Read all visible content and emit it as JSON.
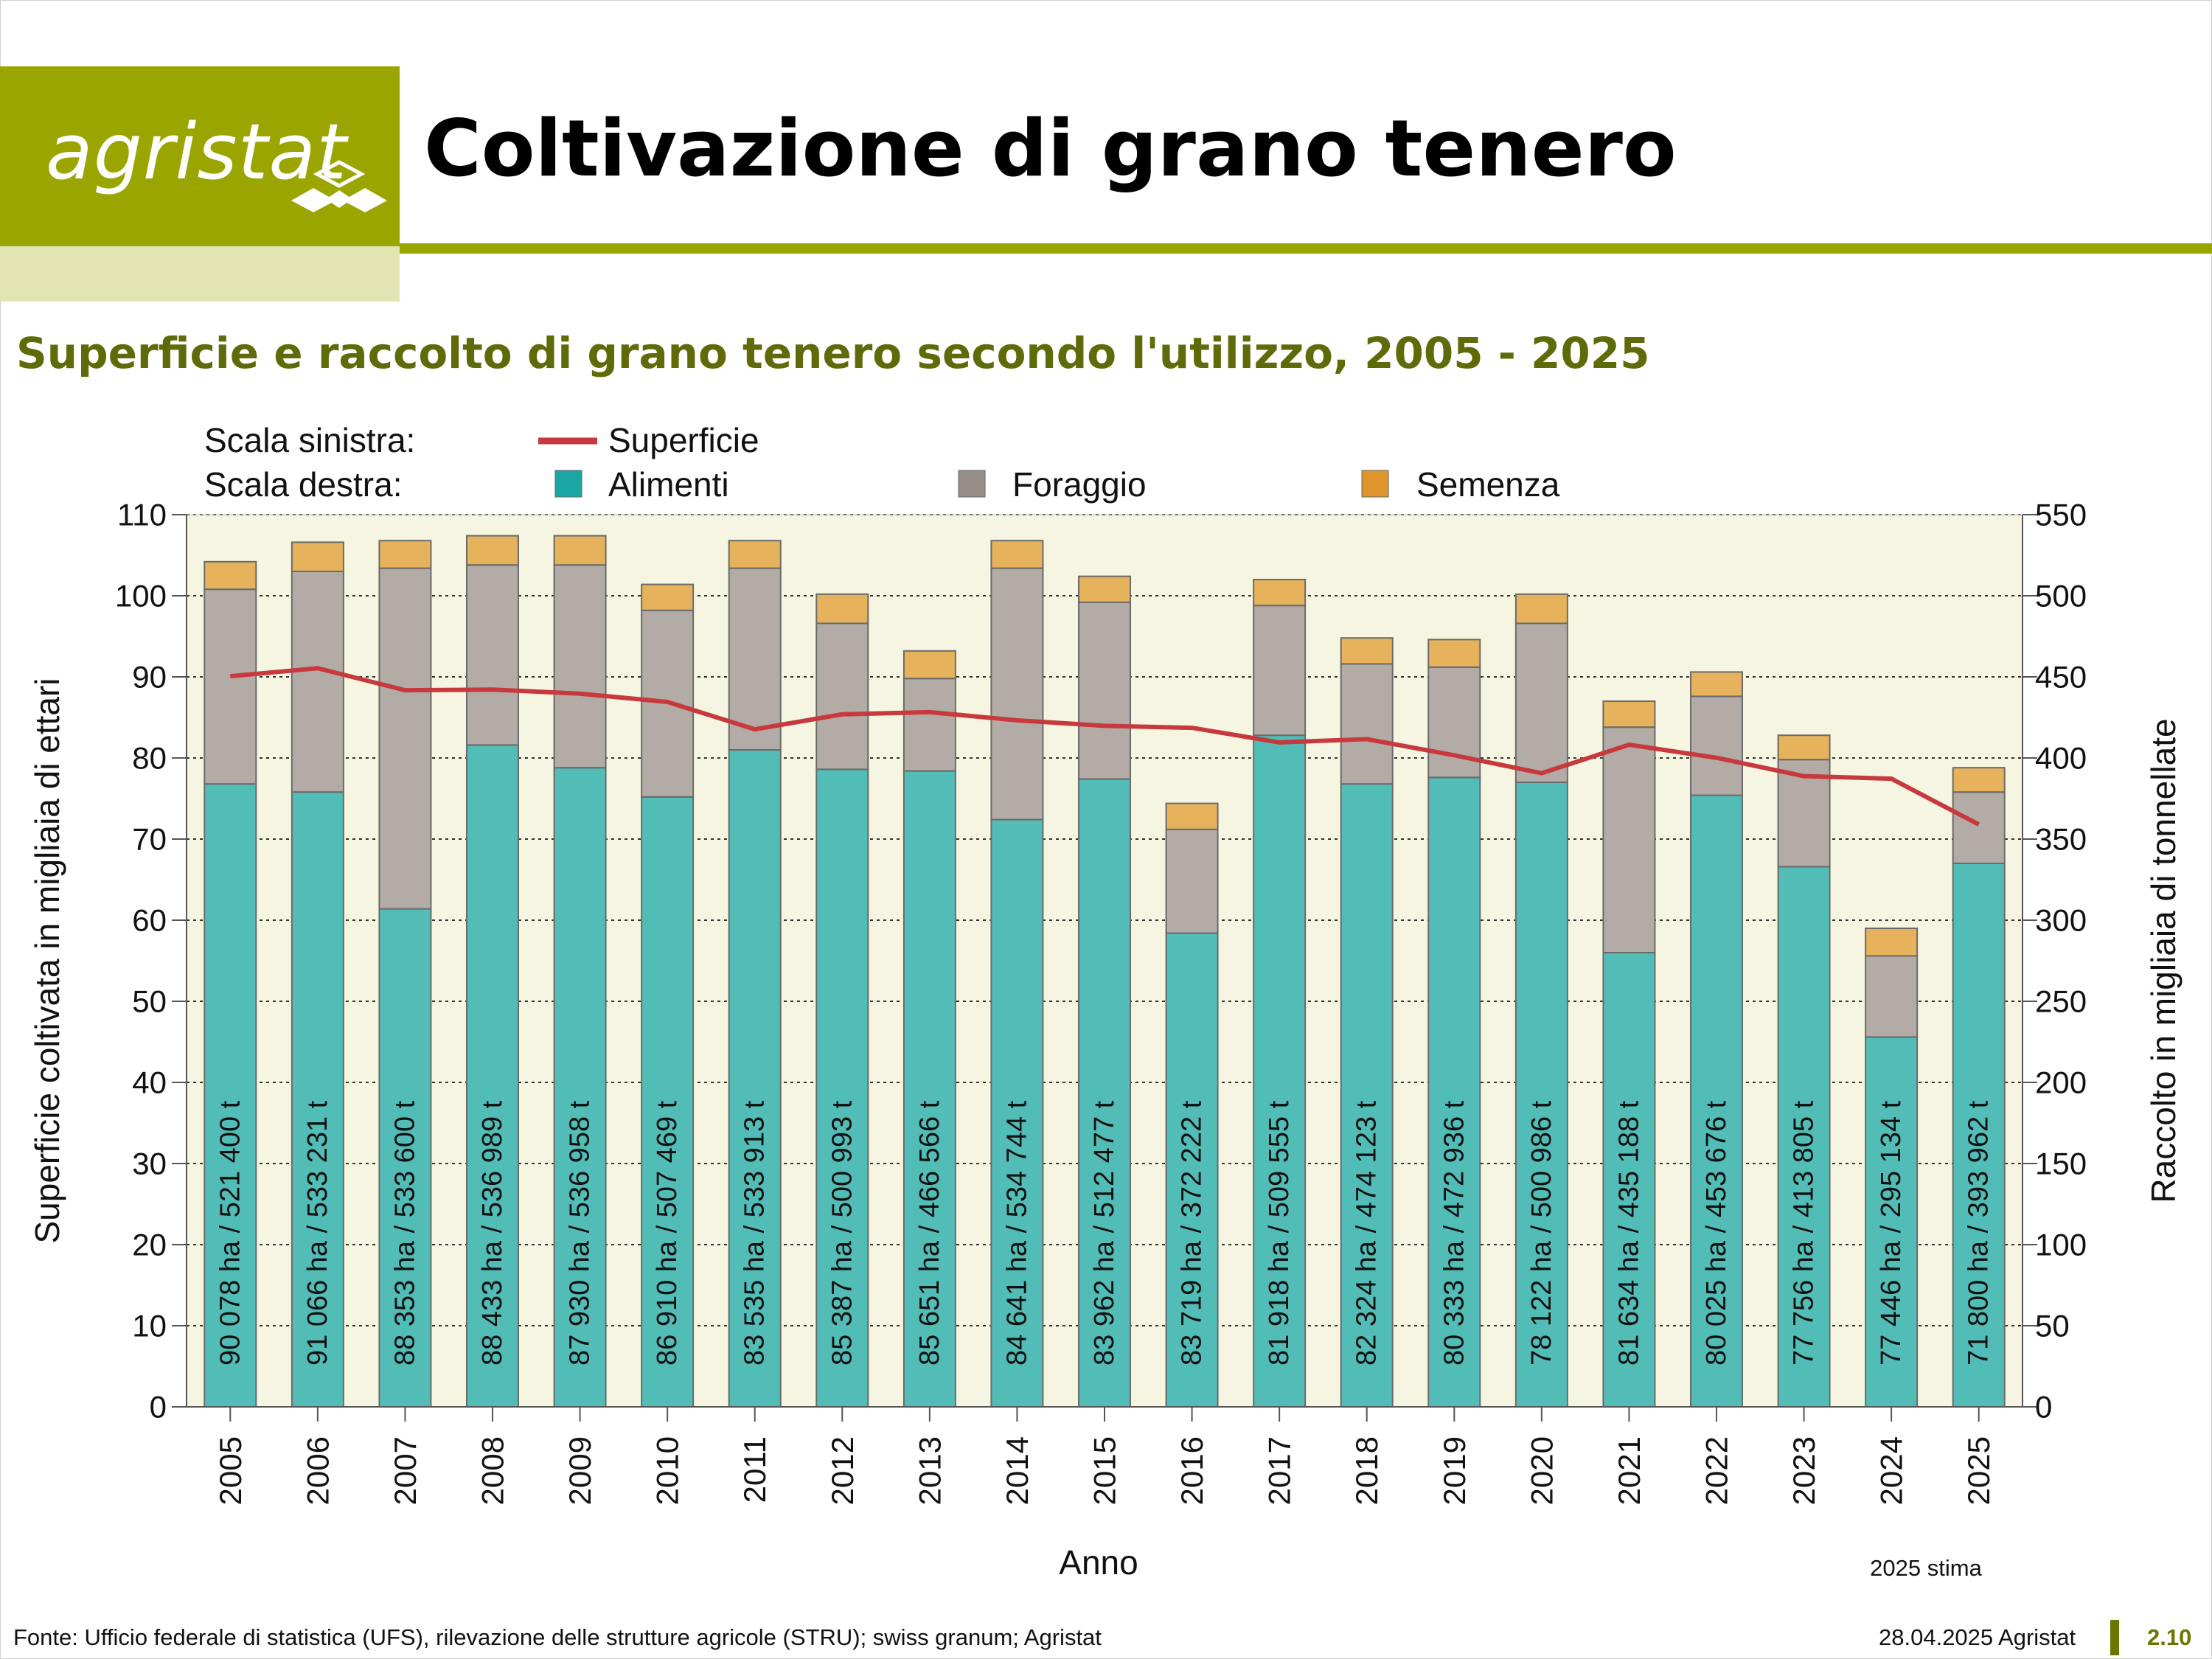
{
  "header": {
    "logo_text": "agristat",
    "title": "Coltivazione di grano tenero"
  },
  "subtitle": "Superficie e raccolto di grano tenero secondo l'utilizzo, 2005 - 2025",
  "legend": {
    "left_scale_label": "Scala sinistra:",
    "right_scale_label": "Scala destra:",
    "line_label": "Superficie",
    "alimenti_label": "Alimenti",
    "foraggio_label": "Foraggio",
    "semenza_label": "Semenza"
  },
  "footer": {
    "source": "Fonte: Ufficio federale di statistica (UFS), rilevazione delle strutture agricole (STRU); swiss granum; Agristat",
    "date": "28.04.2025 Agristat",
    "page_number": "2.10"
  },
  "colors": {
    "brand": "#9aa500",
    "brand_light": "#e2e5b3",
    "subtitle": "#5f6b08",
    "plot_bg": "#f5f5e1",
    "alimenti": "#52bdb7",
    "foraggio": "#b3aca6",
    "semenza": "#e7b25c",
    "line": "#c7393c"
  },
  "chart_data": {
    "type": "bar",
    "xlabel": "Anno",
    "ylabel_left": "Superficie coltivata in migliaia di ettari",
    "ylabel_right": "Raccolto in migliaia di tonnellate",
    "ylim_left": [
      0,
      110
    ],
    "ylim_right": [
      0,
      550
    ],
    "yticks_left": [
      0,
      10,
      20,
      30,
      40,
      50,
      60,
      70,
      80,
      90,
      100,
      110
    ],
    "yticks_right": [
      0,
      50,
      100,
      150,
      200,
      250,
      300,
      350,
      400,
      450,
      500,
      550
    ],
    "note": "2025 stima",
    "categories": [
      "2005",
      "2006",
      "2007",
      "2008",
      "2009",
      "2010",
      "2011",
      "2012",
      "2013",
      "2014",
      "2015",
      "2016",
      "2017",
      "2018",
      "2019",
      "2020",
      "2021",
      "2022",
      "2023",
      "2024",
      "2025"
    ],
    "stacked_series": [
      {
        "name": "Alimenti",
        "axis": "right",
        "values": [
          384,
          379,
          307,
          408,
          394,
          376,
          405,
          393,
          392,
          362,
          387,
          292,
          414,
          384,
          388,
          385,
          280,
          377,
          333,
          228,
          335
        ]
      },
      {
        "name": "Foraggio",
        "axis": "right",
        "values": [
          120,
          136,
          210,
          111,
          125,
          115,
          112,
          90,
          57,
          155,
          109,
          64,
          80,
          74,
          68,
          98,
          139,
          61,
          66,
          50,
          44
        ]
      },
      {
        "name": "Semenza",
        "axis": "right",
        "values": [
          17,
          18,
          17,
          18,
          18,
          16,
          17,
          18,
          17,
          17,
          16,
          16,
          16,
          16,
          17,
          18,
          16,
          15,
          15,
          17,
          15
        ]
      }
    ],
    "line_series": {
      "name": "Superficie",
      "axis": "left",
      "values": [
        90.078,
        91.066,
        88.353,
        88.433,
        87.93,
        86.91,
        83.535,
        85.387,
        85.651,
        84.641,
        83.962,
        83.719,
        81.918,
        82.324,
        80.333,
        78.122,
        81.634,
        80.025,
        77.756,
        77.446,
        71.8
      ]
    },
    "bar_labels": [
      "90 078 ha / 521 400 t",
      "91 066 ha / 533 231 t",
      "88 353 ha / 533 600 t",
      "88 433 ha / 536 989 t",
      "87 930 ha / 536 958 t",
      "86 910 ha / 507 469 t",
      "83 535 ha / 533 913 t",
      "85 387 ha / 500 993 t",
      "85 651 ha / 466 566 t",
      "84 641 ha / 534 744 t",
      "83 962 ha / 512 477 t",
      "83 719 ha / 372 222 t",
      "81 918 ha / 509 555 t",
      "82 324 ha / 474 123 t",
      "80 333 ha / 472 936 t",
      "78 122 ha / 500 986 t",
      "81 634 ha / 435 188 t",
      "80 025 ha / 453 676 t",
      "77 756 ha / 413 805 t",
      "77 446 ha / 295 134 t",
      "71 800 ha / 393 962 t"
    ],
    "grid": "horizontal dotted",
    "legend_position": "top"
  }
}
